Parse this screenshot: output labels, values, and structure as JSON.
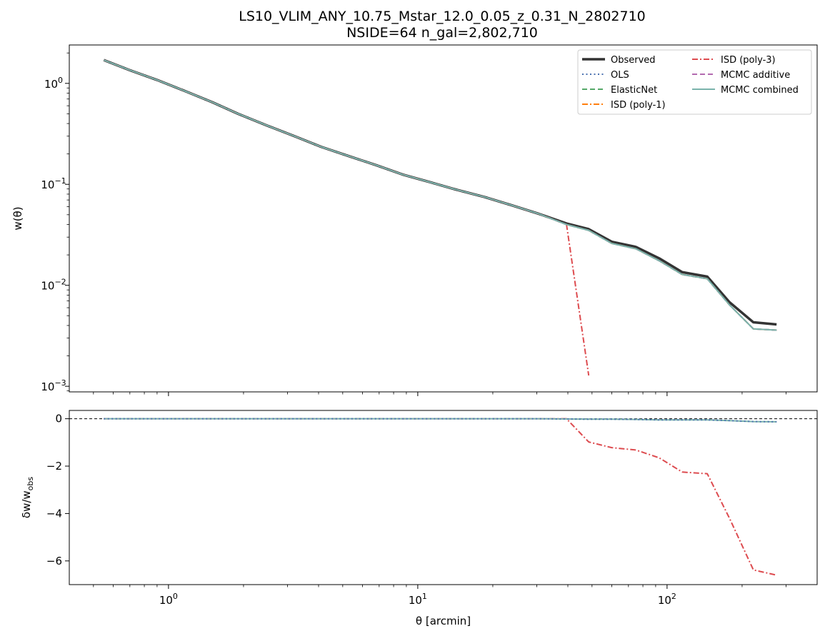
{
  "chart_data": [
    {
      "type": "line",
      "title": "LS10_VLIM_ANY_10.75_Mstar_12.0_0.05_z_0.31_N_2802710",
      "subtitle": "NSIDE=64  n_gal=2,802,710",
      "xlabel": "θ [arcmin]",
      "ylabel": "w(θ)",
      "xscale": "log",
      "yscale": "log",
      "xlim": [
        0.4,
        400
      ],
      "ylim": [
        0.00088,
        2.4
      ],
      "yticks": [
        {
          "value": 1,
          "base": "10",
          "exp": "0"
        },
        {
          "value": 0.1,
          "base": "10",
          "exp": "−1"
        },
        {
          "value": 0.01,
          "base": "10",
          "exp": "−2"
        },
        {
          "value": 0.001,
          "base": "10",
          "exp": "−3"
        }
      ],
      "legend_position": "upper right",
      "legend_columns": 2,
      "x": [
        0.55,
        0.7,
        0.9,
        1.15,
        1.5,
        1.9,
        2.5,
        3.2,
        4.1,
        5.3,
        6.8,
        8.7,
        11.2,
        14.4,
        18.5,
        23.8,
        30.6,
        39.5,
        48.5,
        60.0,
        75.0,
        93.0,
        115.0,
        145.0,
        178.0,
        222.0,
        275.0
      ],
      "series": [
        {
          "name": "Observed",
          "color": "#333333",
          "style": "solid",
          "width": 3.5,
          "values": [
            1.7,
            1.35,
            1.08,
            0.85,
            0.65,
            0.5,
            0.38,
            0.3,
            0.235,
            0.19,
            0.155,
            0.125,
            0.105,
            0.088,
            0.075,
            0.062,
            0.051,
            0.041,
            0.036,
            0.027,
            0.024,
            0.0185,
            0.0135,
            0.0122,
            0.0068,
            0.0043,
            0.0041
          ]
        },
        {
          "name": "OLS",
          "color": "#4c72b0",
          "style": "dotted",
          "width": 2,
          "values": [
            1.7,
            1.35,
            1.08,
            0.85,
            0.65,
            0.5,
            0.38,
            0.3,
            0.235,
            0.19,
            0.155,
            0.125,
            0.105,
            0.088,
            0.075,
            0.062,
            0.051,
            0.04,
            0.035,
            0.026,
            0.023,
            0.0175,
            0.0128,
            0.0116,
            0.0064,
            0.0037,
            0.0036
          ]
        },
        {
          "name": "ElasticNet",
          "color": "#55a868",
          "style": "dashed",
          "width": 2,
          "values": [
            1.7,
            1.35,
            1.08,
            0.85,
            0.65,
            0.5,
            0.38,
            0.3,
            0.235,
            0.19,
            0.155,
            0.125,
            0.105,
            0.088,
            0.075,
            0.062,
            0.051,
            0.04,
            0.035,
            0.026,
            0.023,
            0.0175,
            0.0128,
            0.0116,
            0.0064,
            0.0037,
            0.0036
          ]
        },
        {
          "name": "ISD (poly-1)",
          "color": "#ff7f0e",
          "style": "dashdot",
          "width": 2,
          "values": [
            1.7,
            1.35,
            1.08,
            0.85,
            0.65,
            0.5,
            0.38,
            0.3,
            0.235,
            0.19,
            0.155,
            0.125,
            0.105,
            0.088,
            0.075,
            0.062,
            0.051,
            0.04,
            0.035,
            0.026,
            0.023,
            0.0175,
            0.0128,
            0.0116,
            0.0064,
            0.0037,
            0.0036
          ]
        },
        {
          "name": "ISD (poly-3)",
          "color": "#dd4b4f",
          "style": "dashdot",
          "width": 2,
          "values": [
            1.7,
            1.35,
            1.08,
            0.85,
            0.65,
            0.5,
            0.38,
            0.3,
            0.235,
            0.19,
            0.155,
            0.125,
            0.105,
            0.088,
            0.075,
            0.062,
            0.051,
            0.04,
            0.00128,
            null,
            null,
            null,
            null,
            null,
            null,
            null,
            null
          ]
        },
        {
          "name": "MCMC additive",
          "color": "#b36ab0",
          "style": "dashed",
          "width": 2,
          "values": [
            1.7,
            1.35,
            1.08,
            0.85,
            0.65,
            0.5,
            0.38,
            0.3,
            0.235,
            0.19,
            0.155,
            0.125,
            0.105,
            0.088,
            0.075,
            0.062,
            0.051,
            0.04,
            0.035,
            0.026,
            0.023,
            0.0175,
            0.0128,
            0.0116,
            0.0064,
            0.0037,
            0.0036
          ]
        },
        {
          "name": "MCMC combined",
          "color": "#7ab3ab",
          "style": "solid",
          "width": 2,
          "values": [
            1.7,
            1.35,
            1.08,
            0.85,
            0.65,
            0.5,
            0.38,
            0.3,
            0.235,
            0.19,
            0.155,
            0.125,
            0.105,
            0.088,
            0.075,
            0.062,
            0.051,
            0.04,
            0.035,
            0.026,
            0.023,
            0.0175,
            0.0128,
            0.0116,
            0.0064,
            0.0037,
            0.0036
          ]
        }
      ]
    },
    {
      "type": "line",
      "xlabel": "θ [arcmin]",
      "ylabel": "δw/w_obs",
      "xscale": "log",
      "yscale": "linear",
      "xlim": [
        0.4,
        400
      ],
      "ylim": [
        -7.0,
        0.35
      ],
      "yticks": [
        0,
        -2,
        -4,
        -6
      ],
      "xticks": [
        {
          "value": 1,
          "base": "10",
          "exp": "0"
        },
        {
          "value": 10,
          "base": "10",
          "exp": "1"
        },
        {
          "value": 100,
          "base": "10",
          "exp": "2"
        }
      ],
      "reference_line": 0,
      "x": [
        0.55,
        0.7,
        0.9,
        1.15,
        1.5,
        1.9,
        2.5,
        3.2,
        4.1,
        5.3,
        6.8,
        8.7,
        11.2,
        14.4,
        18.5,
        23.8,
        30.6,
        39.5,
        48.5,
        60.0,
        75.0,
        93.0,
        115.0,
        145.0,
        178.0,
        222.0,
        275.0
      ],
      "series": [
        {
          "name": "ISD (poly-3)",
          "color": "#dd4b4f",
          "style": "dashdot",
          "width": 2,
          "values": [
            0,
            0,
            0,
            0,
            0,
            0,
            0,
            0,
            0,
            0,
            0,
            0,
            0,
            0,
            0,
            0,
            0,
            0,
            -0.98,
            -1.22,
            -1.32,
            -1.65,
            -2.25,
            -2.32,
            -4.2,
            -6.38,
            -6.6
          ]
        },
        {
          "name": "MCMC combined",
          "color": "#7ab3ab",
          "style": "solid",
          "width": 2,
          "values": [
            0,
            0,
            0,
            0,
            0,
            0,
            0,
            0,
            0,
            0,
            0,
            0,
            0,
            0,
            0,
            0,
            0,
            -0.01,
            -0.02,
            -0.02,
            -0.03,
            -0.05,
            -0.05,
            -0.05,
            -0.08,
            -0.12,
            -0.13
          ]
        },
        {
          "name": "OLS",
          "color": "#4c72b0",
          "style": "dotted",
          "width": 2,
          "values": [
            0,
            0,
            0,
            0,
            0,
            0,
            0,
            0,
            0,
            0,
            0,
            0,
            0,
            0,
            0,
            0,
            0,
            -0.01,
            -0.02,
            -0.02,
            -0.03,
            -0.05,
            -0.05,
            -0.05,
            -0.08,
            -0.12,
            -0.13
          ]
        }
      ]
    }
  ]
}
